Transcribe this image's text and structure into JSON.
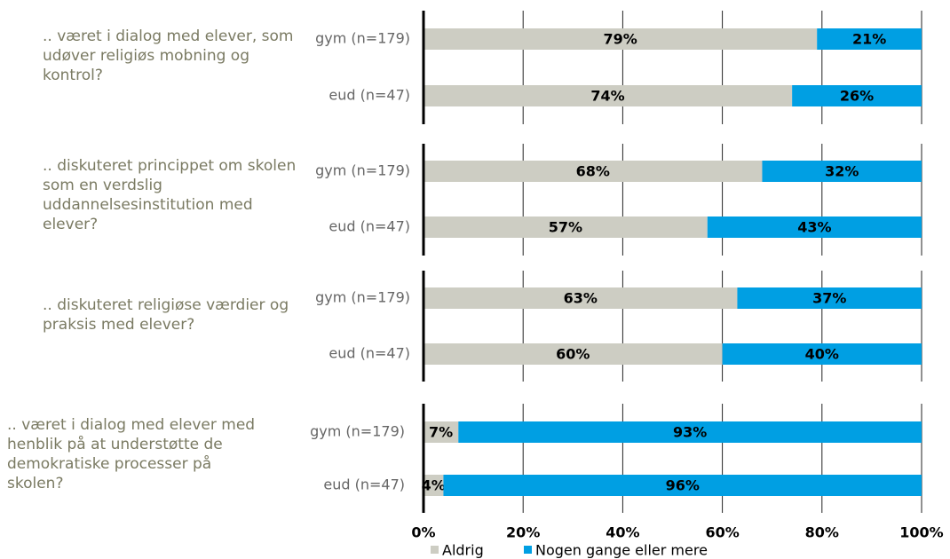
{
  "chart_data": {
    "type": "bar",
    "orientation": "horizontal",
    "stacked": true,
    "questions": [
      ".. været i dialog med elever, som udøver religiøs mobning og kontrol?",
      ".. diskuteret princippet om skolen som en verdslig uddannelsesinstitution med elever?",
      ".. diskuteret religiøse værdier og praksis med elever?",
      ".. været i dialog med elever med henblik på at understøtte de demokratiske processer på skolen?"
    ],
    "categories": [
      "gym (n=179)",
      "eud (n=47)",
      "gym (n=179)",
      "eud (n=47)",
      "gym (n=179)",
      "eud (n=47)",
      "gym (n=179)",
      "eud (n=47)"
    ],
    "series": [
      {
        "name": "Aldrig",
        "color": "#cdcdc3",
        "values": [
          79,
          74,
          68,
          57,
          63,
          60,
          7,
          4
        ],
        "value_labels": [
          "79%",
          "74%",
          "68%",
          "57%",
          "63%",
          "60%",
          "7%",
          "4%"
        ]
      },
      {
        "name": "Nogen gange eller mere",
        "color": "#009fe3",
        "values": [
          21,
          26,
          32,
          43,
          37,
          40,
          93,
          96
        ],
        "value_labels": [
          "21%",
          "26%",
          "32%",
          "43%",
          "37%",
          "40%",
          "93%",
          "96%"
        ]
      }
    ],
    "xlim": [
      0,
      100
    ],
    "xticks": [
      {
        "value": 0,
        "label": "0%"
      },
      {
        "value": 20,
        "label": "20%"
      },
      {
        "value": 40,
        "label": "40%"
      },
      {
        "value": 60,
        "label": "60%"
      },
      {
        "value": 80,
        "label": "80%"
      },
      {
        "value": 100,
        "label": "100%"
      }
    ],
    "grid": true
  }
}
